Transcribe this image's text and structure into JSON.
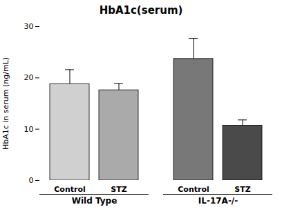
{
  "chart_data": {
    "type": "bar",
    "title": "HbA1c(serum)",
    "ylabel": "HbA1c in serum (ng/mL)",
    "categories": [
      "Control",
      "STZ",
      "Control",
      "STZ"
    ],
    "groups": [
      "Wild Type",
      "Wild Type",
      "IL-17A-/-",
      "IL-17A-/-"
    ],
    "values": [
      18.8,
      17.6,
      23.7,
      10.7
    ],
    "errors": [
      2.8,
      1.3,
      4.0,
      1.1
    ],
    "colors": [
      "#d0d0d0",
      "#aaaaaa",
      "#787878",
      "#4a4a4a"
    ],
    "ylim": [
      0,
      30
    ],
    "yticks": [
      0,
      10,
      20,
      30
    ],
    "grid": false
  }
}
